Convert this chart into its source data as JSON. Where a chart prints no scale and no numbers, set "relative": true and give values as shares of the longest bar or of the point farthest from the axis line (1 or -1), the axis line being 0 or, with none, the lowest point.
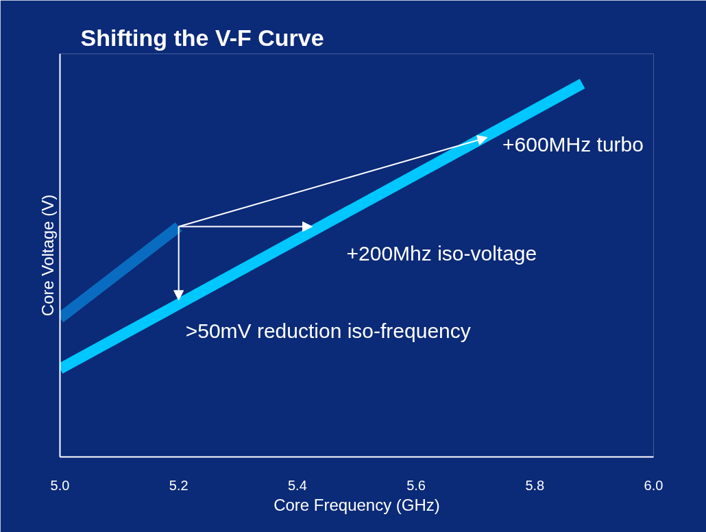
{
  "chart_data": {
    "type": "line",
    "title": "Shifting the V-F Curve",
    "xlabel": "Core Frequency (GHz)",
    "ylabel": "Core Voltage (V)",
    "relative": true,
    "xlim": [
      5.0,
      6.0
    ],
    "xticks": [
      {
        "value": 5.0,
        "label": "5.0"
      },
      {
        "value": 5.2,
        "label": "5.2"
      },
      {
        "value": 5.4,
        "label": "5.4"
      },
      {
        "value": 5.6,
        "label": "5.6"
      },
      {
        "value": 5.8,
        "label": "5.8"
      },
      {
        "value": 6.0,
        "label": "6.0"
      }
    ],
    "tick_labels": "x",
    "grid": false,
    "marker": "none",
    "line_style": "solid",
    "series": [
      {
        "color": "#0a6cc0",
        "x": [
          5.0,
          5.2
        ],
        "values": [
          0.372,
          0.617
        ]
      },
      {
        "color": "#00c7fd",
        "x": [
          5.0,
          5.88
        ],
        "values": [
          0.236,
          1.0
        ]
      }
    ],
    "annotations": [
      {
        "text": "+600MHz turbo",
        "x": 5.72,
        "y": 0.856
      },
      {
        "text": "+200Mhz iso-voltage",
        "x": 5.425,
        "y": 0.617
      },
      {
        "text": ">50mV reduction iso-frequency",
        "x": 5.2,
        "y": 0.42
      }
    ]
  }
}
